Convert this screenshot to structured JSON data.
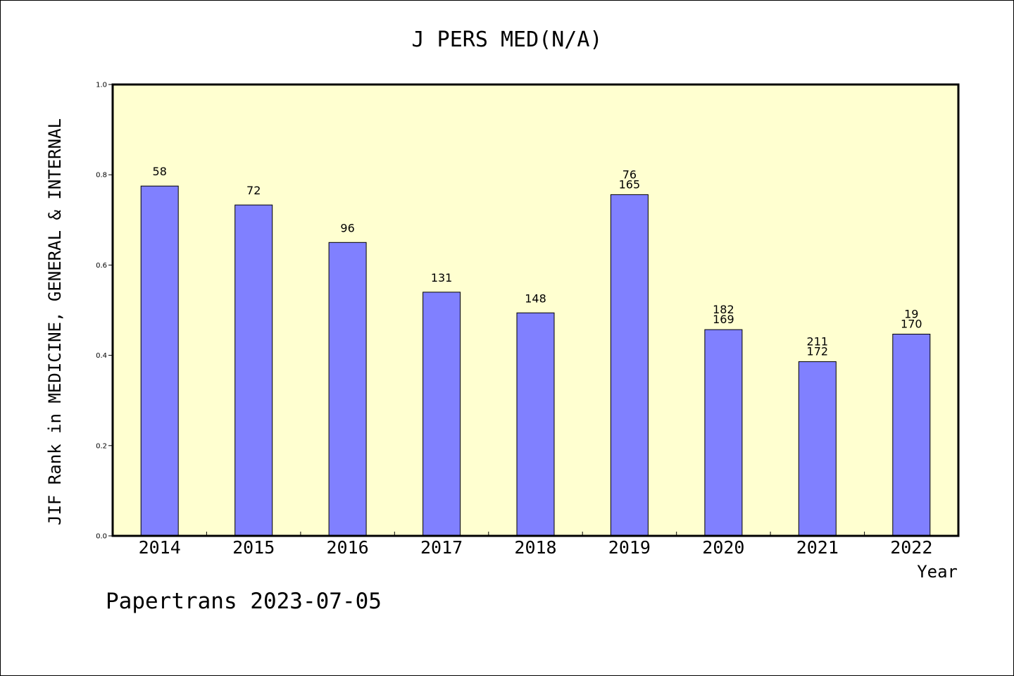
{
  "chart_data": {
    "type": "bar",
    "title": "J PERS MED(N/A)",
    "xlabel": "Year",
    "ylabel": "JIF Rank in MEDICINE, GENERAL & INTERNAL",
    "ylim": [
      0.0,
      1.0
    ],
    "yticks": [
      "0.0",
      "0.2",
      "0.4",
      "0.6",
      "0.8",
      "1.0"
    ],
    "categories": [
      "2014",
      "2015",
      "2016",
      "2017",
      "2018",
      "2019",
      "2020",
      "2021",
      "2022"
    ],
    "values": [
      0.775,
      0.733,
      0.65,
      0.54,
      0.494,
      0.756,
      0.457,
      0.386,
      0.447
    ],
    "labels": [
      [
        "58"
      ],
      [
        "72"
      ],
      [
        "96"
      ],
      [
        "131"
      ],
      [
        "148"
      ],
      [
        "76",
        "165"
      ],
      [
        "182",
        "169"
      ],
      [
        "211",
        "172"
      ],
      [
        "19",
        "170"
      ]
    ],
    "bar_color": "#8080ff",
    "plot_background": "#ffffd0",
    "grid": false
  },
  "footer": {
    "text": "Papertrans 2023-07-05"
  }
}
